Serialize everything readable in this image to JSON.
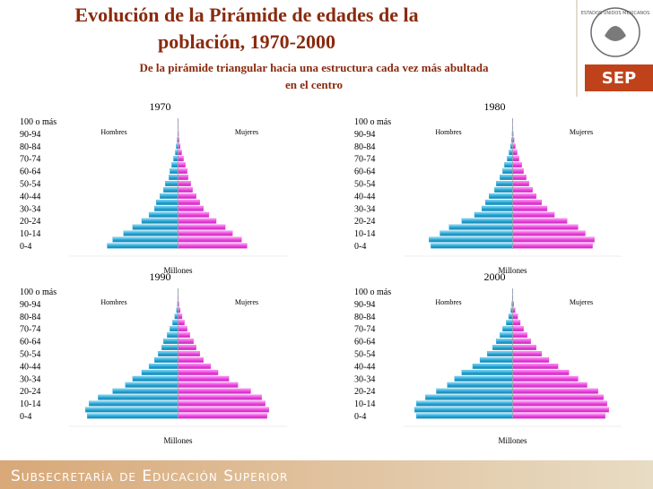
{
  "header": {
    "title_lines": [
      "Evolución de la Pirámide de edades de la",
      "población, 1970-2000"
    ],
    "subtitle_lines": [
      "De la pirámide triangular hacia una estructura cada vez más abultada",
      "en el centro"
    ]
  },
  "logo": {
    "seal_text": "ESTADOS UNIDOS MEXICANOS",
    "text": "SEP"
  },
  "footer": {
    "text": "Subsecretaría de Educación Superior"
  },
  "chart_data": [
    {
      "type": "pyramid",
      "title": "1970",
      "x_label": "Millones",
      "xlim": [
        -6,
        6
      ],
      "categories": [
        "0-4",
        null,
        "10-14",
        null,
        "20-24",
        null,
        "30-34",
        null,
        "40-44",
        null,
        "50-54",
        null,
        "60-64",
        null,
        "70-74",
        null,
        "80-84",
        null,
        "90-94",
        null,
        "100 o más"
      ],
      "series": [
        {
          "name": "Hombres",
          "color": "#29a8d8",
          "values": [
            -3.9,
            -3.6,
            -3.0,
            -2.5,
            -2.0,
            -1.6,
            -1.3,
            -1.2,
            -1.0,
            -0.8,
            -0.7,
            -0.5,
            -0.45,
            -0.35,
            -0.25,
            -0.15,
            -0.1,
            -0.05,
            -0.02,
            -0.01,
            -0.01
          ]
        },
        {
          "name": "Mujeres",
          "color": "#ee44e0",
          "values": [
            3.8,
            3.5,
            3.0,
            2.6,
            2.1,
            1.7,
            1.4,
            1.2,
            1.0,
            0.8,
            0.7,
            0.55,
            0.5,
            0.4,
            0.3,
            0.2,
            0.12,
            0.06,
            0.03,
            0.01,
            0.01
          ]
        }
      ]
    },
    {
      "type": "pyramid",
      "title": "1980",
      "x_label": "Millones",
      "xlim": [
        -6,
        6
      ],
      "categories": [
        "0-4",
        null,
        "10-14",
        null,
        "20-24",
        null,
        "30-34",
        null,
        "40-44",
        null,
        "50-54",
        null,
        "60-64",
        null,
        "70-74",
        null,
        "80-84",
        null,
        "90-94",
        null,
        "100 o más"
      ],
      "series": [
        {
          "name": "Hombres",
          "color": "#29a8d8",
          "values": [
            -4.5,
            -4.6,
            -4.0,
            -3.5,
            -2.8,
            -2.1,
            -1.7,
            -1.5,
            -1.3,
            -1.0,
            -0.9,
            -0.7,
            -0.55,
            -0.45,
            -0.3,
            -0.2,
            -0.12,
            -0.06,
            -0.03,
            -0.01,
            -0.01
          ]
        },
        {
          "name": "Mujeres",
          "color": "#ee44e0",
          "values": [
            4.4,
            4.5,
            4.0,
            3.6,
            3.0,
            2.3,
            1.9,
            1.6,
            1.3,
            1.1,
            0.9,
            0.75,
            0.6,
            0.5,
            0.35,
            0.25,
            0.15,
            0.08,
            0.04,
            0.01,
            0.01
          ]
        }
      ]
    },
    {
      "type": "pyramid",
      "title": "1990",
      "x_label": "Millones",
      "xlim": [
        -6,
        6
      ],
      "categories": [
        "0-4",
        null,
        "10-14",
        null,
        "20-24",
        null,
        "30-34",
        null,
        "40-44",
        null,
        "50-54",
        null,
        "60-64",
        null,
        "70-74",
        null,
        "80-84",
        null,
        "90-94",
        null,
        "100 o más"
      ],
      "series": [
        {
          "name": "Hombres",
          "color": "#29a8d8",
          "values": [
            -5.0,
            -5.1,
            -4.9,
            -4.4,
            -3.6,
            -2.9,
            -2.5,
            -2.0,
            -1.6,
            -1.3,
            -1.1,
            -0.9,
            -0.8,
            -0.6,
            -0.45,
            -0.3,
            -0.18,
            -0.09,
            -0.04,
            -0.02,
            -0.01
          ]
        },
        {
          "name": "Mujeres",
          "color": "#ee44e0",
          "values": [
            4.9,
            5.0,
            4.8,
            4.6,
            4.0,
            3.3,
            2.8,
            2.2,
            1.8,
            1.4,
            1.2,
            1.0,
            0.85,
            0.65,
            0.5,
            0.35,
            0.22,
            0.12,
            0.05,
            0.02,
            0.01
          ]
        }
      ]
    },
    {
      "type": "pyramid",
      "title": "2000",
      "x_label": "Millones",
      "xlim": [
        -6,
        6
      ],
      "categories": [
        "0-4",
        null,
        "10-14",
        null,
        "20-24",
        null,
        "30-34",
        null,
        "40-44",
        null,
        "50-54",
        null,
        "60-64",
        null,
        "70-74",
        null,
        "80-84",
        null,
        "90-94",
        null,
        "100 o más"
      ],
      "series": [
        {
          "name": "Hombres",
          "color": "#29a8d8",
          "values": [
            -5.3,
            -5.4,
            -5.3,
            -4.8,
            -4.2,
            -3.6,
            -3.2,
            -2.8,
            -2.2,
            -1.8,
            -1.4,
            -1.1,
            -0.9,
            -0.7,
            -0.55,
            -0.35,
            -0.22,
            -0.1,
            -0.05,
            -0.02,
            -0.01
          ]
        },
        {
          "name": "Mujeres",
          "color": "#ee44e0",
          "values": [
            5.1,
            5.3,
            5.2,
            5.0,
            4.7,
            4.1,
            3.6,
            3.1,
            2.5,
            2.0,
            1.6,
            1.3,
            1.0,
            0.8,
            0.6,
            0.42,
            0.28,
            0.14,
            0.06,
            0.02,
            0.01
          ]
        }
      ]
    }
  ]
}
